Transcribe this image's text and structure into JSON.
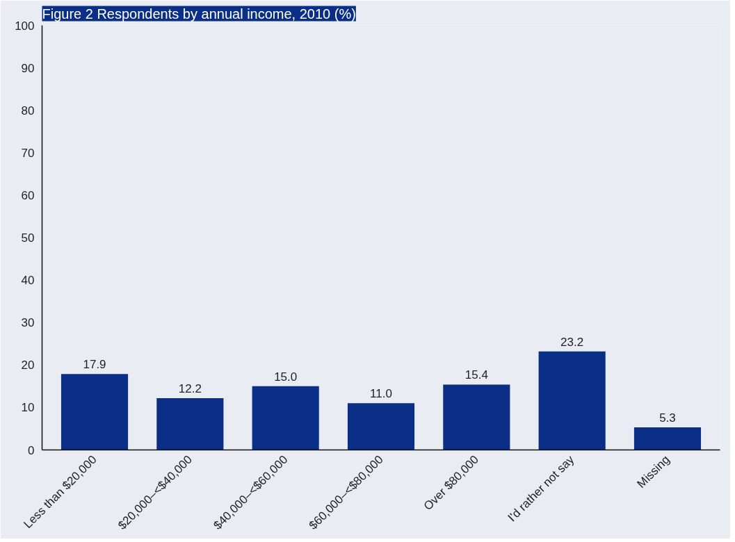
{
  "chart_data": {
    "type": "bar",
    "title": "Figure 2 Respondents by annual income, 2010 (%)",
    "categories": [
      "Less than $20,000",
      "$20,000–<$40,000",
      "$40,000–<$60,000",
      "$60,000–<$80,000",
      "Over $80,000",
      "I'd rather not say",
      "Missing"
    ],
    "values": [
      17.9,
      12.2,
      15.0,
      11.0,
      15.4,
      23.2,
      5.3
    ],
    "color": "#0b2e87",
    "ylim": [
      0,
      100
    ],
    "yticks": [
      0,
      10,
      20,
      30,
      40,
      50,
      60,
      70,
      80,
      90,
      100
    ],
    "value_labels": [
      "17.9",
      "12.2",
      "15.0",
      "11.0",
      "15.4",
      "23.2",
      "5.3"
    ],
    "grid": false
  }
}
